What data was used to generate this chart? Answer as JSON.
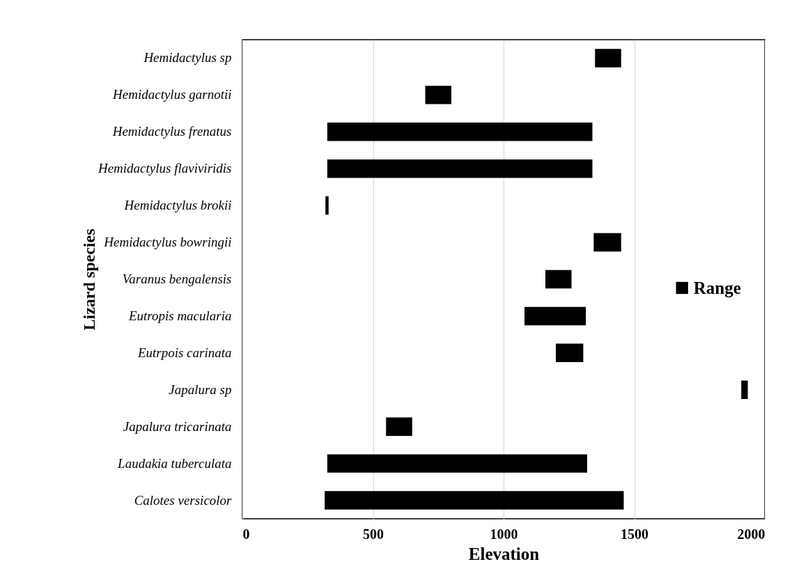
{
  "chart_data": {
    "type": "bar",
    "orientation": "horizontal",
    "xlabel": "Elevation",
    "ylabel": "Lizard species",
    "categories": [
      "Hemidactylus sp",
      "Hemidactylus garnotii",
      "Hemidactylus frenatus",
      "Hemidactylus flaviviridis",
      "Hemidactylus brokii",
      "Hemidactylus bowringii",
      "Varanus bengalensis",
      "Eutropis macularia",
      "Eutrpois carinata",
      "Japalura sp",
      "Japalura tricarinata ",
      "Laudakia tuberculata",
      "Calotes versicolor"
    ],
    "series": [
      {
        "name": "Range",
        "color": "#000000",
        "base": [
          1350,
          700,
          325,
          325,
          318,
          1345,
          1160,
          1080,
          1200,
          1910,
          550,
          325,
          315
        ],
        "values": [
          100,
          100,
          1015,
          1015,
          12,
          105,
          100,
          235,
          105,
          25,
          100,
          995,
          1145
        ]
      }
    ],
    "xlim": [
      0,
      2000
    ],
    "xticks": [
      0,
      500,
      1000,
      1500,
      2000
    ],
    "grid": "x",
    "legend": "right"
  }
}
